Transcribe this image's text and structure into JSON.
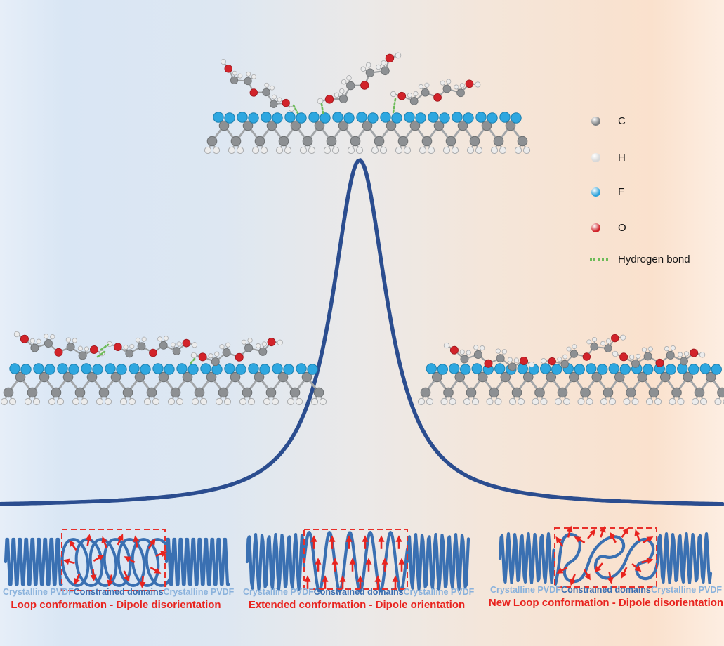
{
  "legend": {
    "items": [
      {
        "label": "C",
        "swatch": "sphere",
        "color": "#7d8082"
      },
      {
        "label": "H",
        "swatch": "sphere",
        "color": "#d8d8d8"
      },
      {
        "label": "F",
        "swatch": "sphere",
        "color": "#2ba1da"
      },
      {
        "label": "O",
        "swatch": "sphere",
        "color": "#cf2128"
      },
      {
        "label": "Hydrogen bond",
        "swatch": "dotted-line",
        "color": "#6cbb58"
      }
    ]
  },
  "panels": [
    {
      "left_label": "Crystalline PVDF",
      "middle_label": "Constrained domains",
      "right_label": "Crystalline PVDF",
      "caption": "Loop conformation - Dipole disorientation"
    },
    {
      "left_label": "Crystalline PVDF",
      "middle_label": "Constrained domains",
      "right_label": "Crystalline PVDF",
      "caption": "Extended conformation - Dipole orientation"
    },
    {
      "left_label": "Crystalline PVDF",
      "middle_label": "Constrained domains",
      "right_label": "Crystalline PVDF",
      "caption": "New Loop conformation - Dipole disorientation"
    }
  ],
  "colors": {
    "background_left": "#d9e6f4",
    "background_right": "#fae1cd",
    "curve": "#2b4d8f",
    "wave_blue": "#3a70b2",
    "arrow_red": "#e8241f",
    "dashed_box_red": "#e8302a",
    "label_light_blue": "#8ab2dc",
    "label_steel_blue": "#3c6fb1",
    "caption_red": "#e8241f",
    "atom_C": "#8d9093",
    "atom_H": "#ececec",
    "atom_F": "#2ea7e0",
    "atom_O": "#d2232a",
    "hydrogen_bond_green": "#6cbb58",
    "bond_gray": "#a3a6a9"
  }
}
